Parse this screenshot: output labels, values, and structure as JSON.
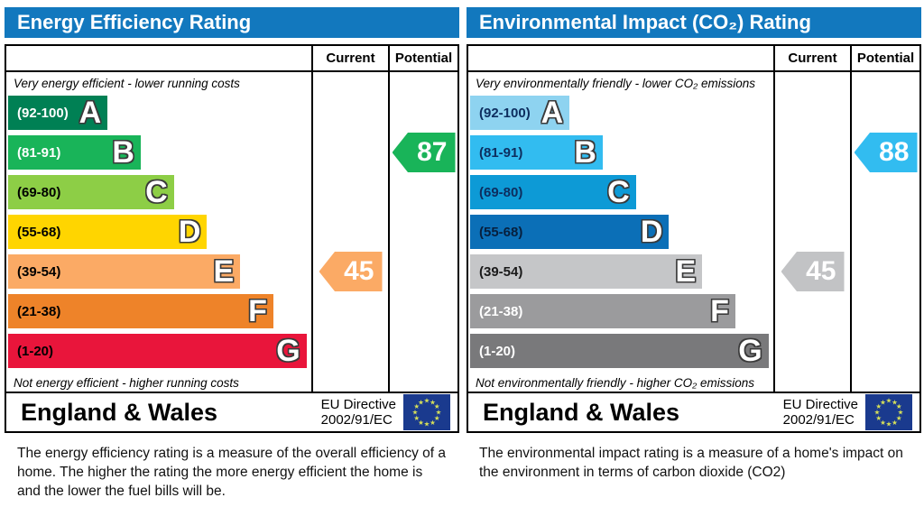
{
  "header_color": "#1278be",
  "flag": {
    "background": "#1a3a8e",
    "star_color": "#d6df58"
  },
  "panels": [
    {
      "title": "Energy Efficiency Rating",
      "columns": {
        "current": "Current",
        "potential": "Potential"
      },
      "top_caption": "Very energy efficient - lower running costs",
      "bottom_caption": "Not energy efficient - higher running costs",
      "bands": [
        {
          "label": "A",
          "range": "(92-100)",
          "color": "#008054",
          "range_color": "#ffffff",
          "width_pct": 33
        },
        {
          "label": "B",
          "range": "(81-91)",
          "color": "#19b459",
          "range_color": "#ffffff",
          "width_pct": 44
        },
        {
          "label": "C",
          "range": "(69-80)",
          "color": "#8dce46",
          "range_color": "#000000",
          "width_pct": 55
        },
        {
          "label": "D",
          "range": "(55-68)",
          "color": "#ffd500",
          "range_color": "#000000",
          "width_pct": 66
        },
        {
          "label": "E",
          "range": "(39-54)",
          "color": "#fbaa65",
          "range_color": "#000000",
          "width_pct": 77
        },
        {
          "label": "F",
          "range": "(21-38)",
          "color": "#ee8329",
          "range_color": "#000000",
          "width_pct": 88
        },
        {
          "label": "G",
          "range": "(1-20)",
          "color": "#e9153b",
          "range_color": "#000000",
          "width_pct": 99
        }
      ],
      "current": {
        "value": "45",
        "band": "E",
        "color": "#fbaa65"
      },
      "potential": {
        "value": "87",
        "band": "B",
        "color": "#19b459"
      },
      "footer": {
        "region": "England & Wales",
        "directive_line1": "EU Directive",
        "directive_line2": "2002/91/EC"
      },
      "description": "The energy efficiency rating is a measure of the overall efficiency of a home.  The higher the rating the more energy efficient the home is and the lower the fuel bills will be."
    },
    {
      "title": "Environmental Impact (CO₂) Rating",
      "columns": {
        "current": "Current",
        "potential": "Potential"
      },
      "top_caption": "Very environmentally friendly - lower CO₂ emissions",
      "bottom_caption": "Not environmentally friendly - higher CO₂ emissions",
      "bands": [
        {
          "label": "A",
          "range": "(92-100)",
          "color": "#8ed3f0",
          "range_color": "#0d2d5e",
          "width_pct": 33
        },
        {
          "label": "B",
          "range": "(81-91)",
          "color": "#32bcf0",
          "range_color": "#0d2d5e",
          "width_pct": 44
        },
        {
          "label": "C",
          "range": "(69-80)",
          "color": "#0d9ad6",
          "range_color": "#0d2d5e",
          "width_pct": 55
        },
        {
          "label": "D",
          "range": "(55-68)",
          "color": "#0b6fb7",
          "range_color": "#071f3d",
          "width_pct": 66
        },
        {
          "label": "E",
          "range": "(39-54)",
          "color": "#c5c6c8",
          "range_color": "#1a1a1a",
          "width_pct": 77
        },
        {
          "label": "F",
          "range": "(21-38)",
          "color": "#9b9b9d",
          "range_color": "#ffffff",
          "width_pct": 88
        },
        {
          "label": "G",
          "range": "(1-20)",
          "color": "#79797b",
          "range_color": "#ffffff",
          "width_pct": 99
        }
      ],
      "current": {
        "value": "45",
        "band": "E",
        "color": "#c2c3c5"
      },
      "potential": {
        "value": "88",
        "band": "B",
        "color": "#32bcf0"
      },
      "footer": {
        "region": "England & Wales",
        "directive_line1": "EU Directive",
        "directive_line2": "2002/91/EC"
      },
      "description": "The environmental impact rating is a measure of a home's impact on the environment in terms of carbon dioxide (CO2)"
    }
  ],
  "chart_data": [
    {
      "type": "bar",
      "title": "Energy Efficiency Rating",
      "categories": [
        "A",
        "B",
        "C",
        "D",
        "E",
        "F",
        "G"
      ],
      "band_ranges": [
        "92-100",
        "81-91",
        "69-80",
        "55-68",
        "39-54",
        "21-38",
        "1-20"
      ],
      "bar_lengths_pct": [
        33,
        44,
        55,
        66,
        77,
        88,
        99
      ],
      "current": 45,
      "current_band": "E",
      "potential": 87,
      "potential_band": "B",
      "top_label": "Very energy efficient - lower running costs",
      "bottom_label": "Not energy efficient - higher running costs"
    },
    {
      "type": "bar",
      "title": "Environmental Impact (CO₂) Rating",
      "categories": [
        "A",
        "B",
        "C",
        "D",
        "E",
        "F",
        "G"
      ],
      "band_ranges": [
        "92-100",
        "81-91",
        "69-80",
        "55-68",
        "39-54",
        "21-38",
        "1-20"
      ],
      "bar_lengths_pct": [
        33,
        44,
        55,
        66,
        77,
        88,
        99
      ],
      "current": 45,
      "current_band": "E",
      "potential": 88,
      "potential_band": "B",
      "top_label": "Very environmentally friendly - lower CO₂ emissions",
      "bottom_label": "Not environmentally friendly - higher CO₂ emissions"
    }
  ]
}
